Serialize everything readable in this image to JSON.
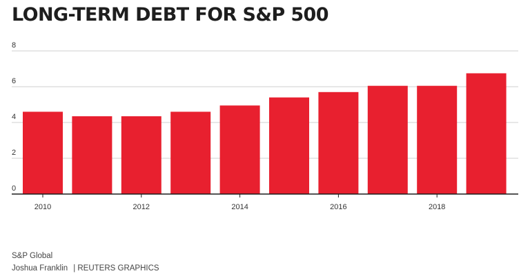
{
  "chart_data": {
    "type": "bar",
    "title": "LONG-TERM DEBT FOR S&P 500",
    "x": [
      2010,
      2011,
      2012,
      2013,
      2014,
      2015,
      2016,
      2017,
      2018,
      2019
    ],
    "values": [
      4.6,
      4.35,
      4.35,
      4.6,
      4.95,
      5.4,
      5.7,
      6.05,
      6.05,
      6.75
    ],
    "x_tick_labels": [
      "2010",
      "2012",
      "2014",
      "2016",
      "2018"
    ],
    "y_ticks": [
      "0",
      "2",
      "4",
      "6",
      "8"
    ],
    "ylim": [
      0,
      8
    ],
    "xlabel": "",
    "ylabel": "",
    "grid": true,
    "bar_color": "#e8202f"
  },
  "footer": {
    "source": "S&P Global",
    "author": "Joshua Franklin",
    "credit": "| REUTERS GRAPHICS"
  }
}
